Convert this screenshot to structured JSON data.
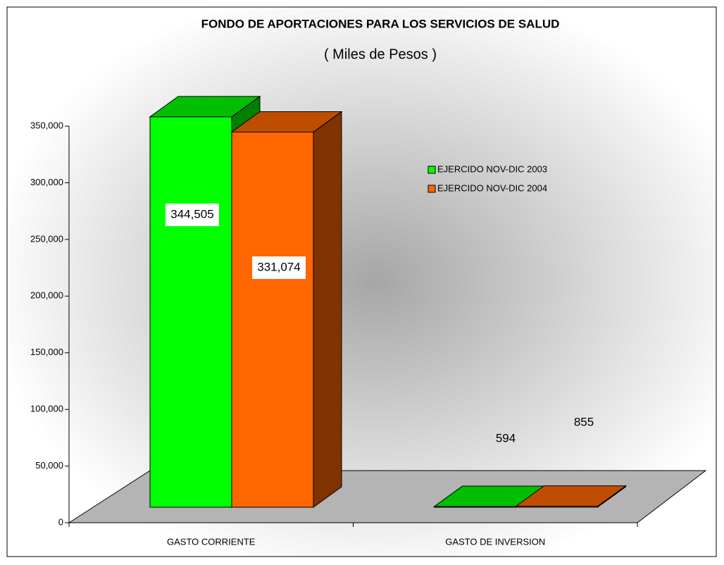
{
  "chart_data": {
    "type": "bar3d",
    "title": "FONDO DE APORTACIONES PARA LOS SERVICIOS DE SALUD",
    "subtitle": "( Miles de Pesos )",
    "categories": [
      "GASTO CORRIENTE",
      "GASTO DE INVERSION"
    ],
    "series": [
      {
        "name": "EJERCIDO NOV-DIC 2003",
        "color": "#00ff00",
        "values": [
          344505,
          594
        ],
        "value_labels": [
          "344,505",
          "594"
        ]
      },
      {
        "name": "EJERCIDO NOV-DIC 2004",
        "color": "#ff6600",
        "values": [
          331074,
          855
        ],
        "value_labels": [
          "331,074",
          "855"
        ]
      }
    ],
    "ylim": [
      0,
      350000
    ],
    "yticks": [
      0,
      {
        "value": 50000,
        "label": "50,000"
      },
      {
        "value": 100000,
        "label": "100,000"
      },
      {
        "value": 150000,
        "label": "150,000"
      },
      {
        "value": 200000,
        "label": "200,000"
      },
      {
        "value": 250000,
        "label": "250,000"
      },
      {
        "value": 300000,
        "label": "300,000"
      },
      {
        "value": 350000,
        "label": "350,000"
      }
    ],
    "legend": "upper right"
  }
}
